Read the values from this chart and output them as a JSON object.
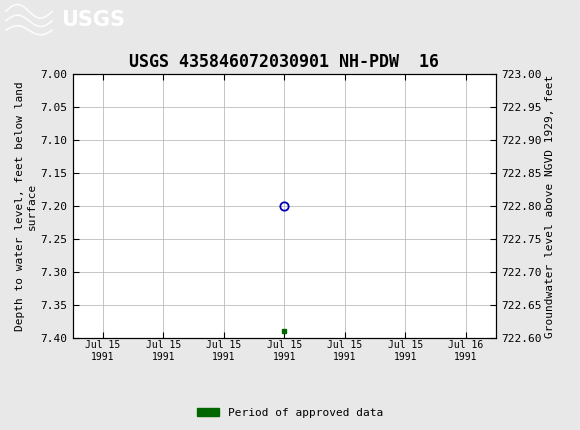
{
  "title": "USGS 435846072030901 NH-PDW  16",
  "ylabel_left": "Depth to water level, feet below land\nsurface",
  "ylabel_right": "Groundwater level above NGVD 1929, feet",
  "ylim_left_top": 7.0,
  "ylim_left_bottom": 7.4,
  "ylim_right_top": 723.0,
  "ylim_right_bottom": 722.6,
  "yticks_left": [
    7.0,
    7.05,
    7.1,
    7.15,
    7.2,
    7.25,
    7.3,
    7.35,
    7.4
  ],
  "yticks_right": [
    723.0,
    722.95,
    722.9,
    722.85,
    722.8,
    722.75,
    722.7,
    722.65,
    722.6
  ],
  "data_point_x": 3,
  "data_point_y": 7.2,
  "green_point_x": 3,
  "green_point_y": 7.39,
  "circle_color": "#0000bb",
  "green_color": "#006600",
  "header_bg_color": "#1a6e3c",
  "header_text_color": "#ffffff",
  "bg_color": "#e8e8e8",
  "plot_bg_color": "#ffffff",
  "grid_color": "#bbbbbb",
  "font_family": "monospace",
  "title_fontsize": 12,
  "axis_fontsize": 8,
  "tick_fontsize": 8,
  "legend_label": "Period of approved data",
  "xtick_labels": [
    "Jul 15\n1991",
    "Jul 15\n1991",
    "Jul 15\n1991",
    "Jul 15\n1991",
    "Jul 15\n1991",
    "Jul 15\n1991",
    "Jul 16\n1991"
  ],
  "xtick_positions": [
    0,
    1,
    2,
    3,
    4,
    5,
    6
  ],
  "xlim": [
    -0.5,
    6.5
  ]
}
